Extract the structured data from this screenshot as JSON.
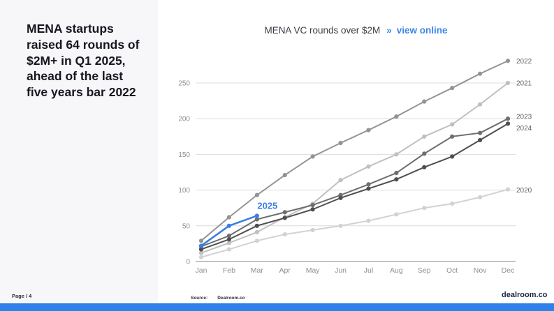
{
  "page": {
    "headline": "MENA startups\nraised 64 rounds of\n$2M+ in Q1 2025,\nahead of the last\nfive years bar 2022",
    "page_label": "Page / 4",
    "source_label": "Source:",
    "source_value": "Dealroom.co",
    "brand": "dealroom.co",
    "accent_blue": "#3d86e8",
    "bottom_bar_color": "#2f80e8"
  },
  "header": {
    "title": "MENA VC rounds over $2M",
    "link_arrow": "»",
    "link_label": "view online"
  },
  "chart_data": {
    "type": "line",
    "title": "MENA VC rounds over $2M",
    "xlabel": "",
    "ylabel": "",
    "x": [
      "Jan",
      "Feb",
      "Mar",
      "Apr",
      "May",
      "Jun",
      "Jul",
      "Aug",
      "Sep",
      "Oct",
      "Nov",
      "Dec"
    ],
    "ylim": [
      0,
      290
    ],
    "yticks": [
      0,
      50,
      100,
      150,
      200,
      250
    ],
    "grid": "horizontal",
    "legend_position": "line-end-labels-right",
    "series": [
      {
        "name": "2020",
        "color": "#d2d2d2",
        "label_dy": 1,
        "values": [
          6,
          17,
          29,
          38,
          44,
          50,
          57,
          66,
          75,
          81,
          90,
          101
        ]
      },
      {
        "name": "2021",
        "color": "#c0c0c0",
        "label_dy": 0,
        "values": [
          12,
          26,
          41,
          62,
          81,
          114,
          133,
          150,
          175,
          192,
          220,
          250
        ]
      },
      {
        "name": "2022",
        "color": "#949494",
        "label_dy": 0,
        "values": [
          29,
          62,
          93,
          121,
          147,
          166,
          184,
          203,
          224,
          243,
          263,
          281
        ]
      },
      {
        "name": "2023",
        "color": "#6e6e6e",
        "label_dy": -3,
        "values": [
          21,
          36,
          59,
          69,
          79,
          93,
          108,
          124,
          151,
          175,
          180,
          200
        ]
      },
      {
        "name": "2024",
        "color": "#4f4f4f",
        "label_dy": 6,
        "values": [
          17,
          31,
          50,
          61,
          73,
          89,
          102,
          115,
          132,
          147,
          170,
          193
        ]
      },
      {
        "name": "2025",
        "color": "#3b7de3",
        "label_position": "above-last",
        "bold_label": true,
        "values": [
          22,
          50,
          64
        ]
      }
    ]
  }
}
